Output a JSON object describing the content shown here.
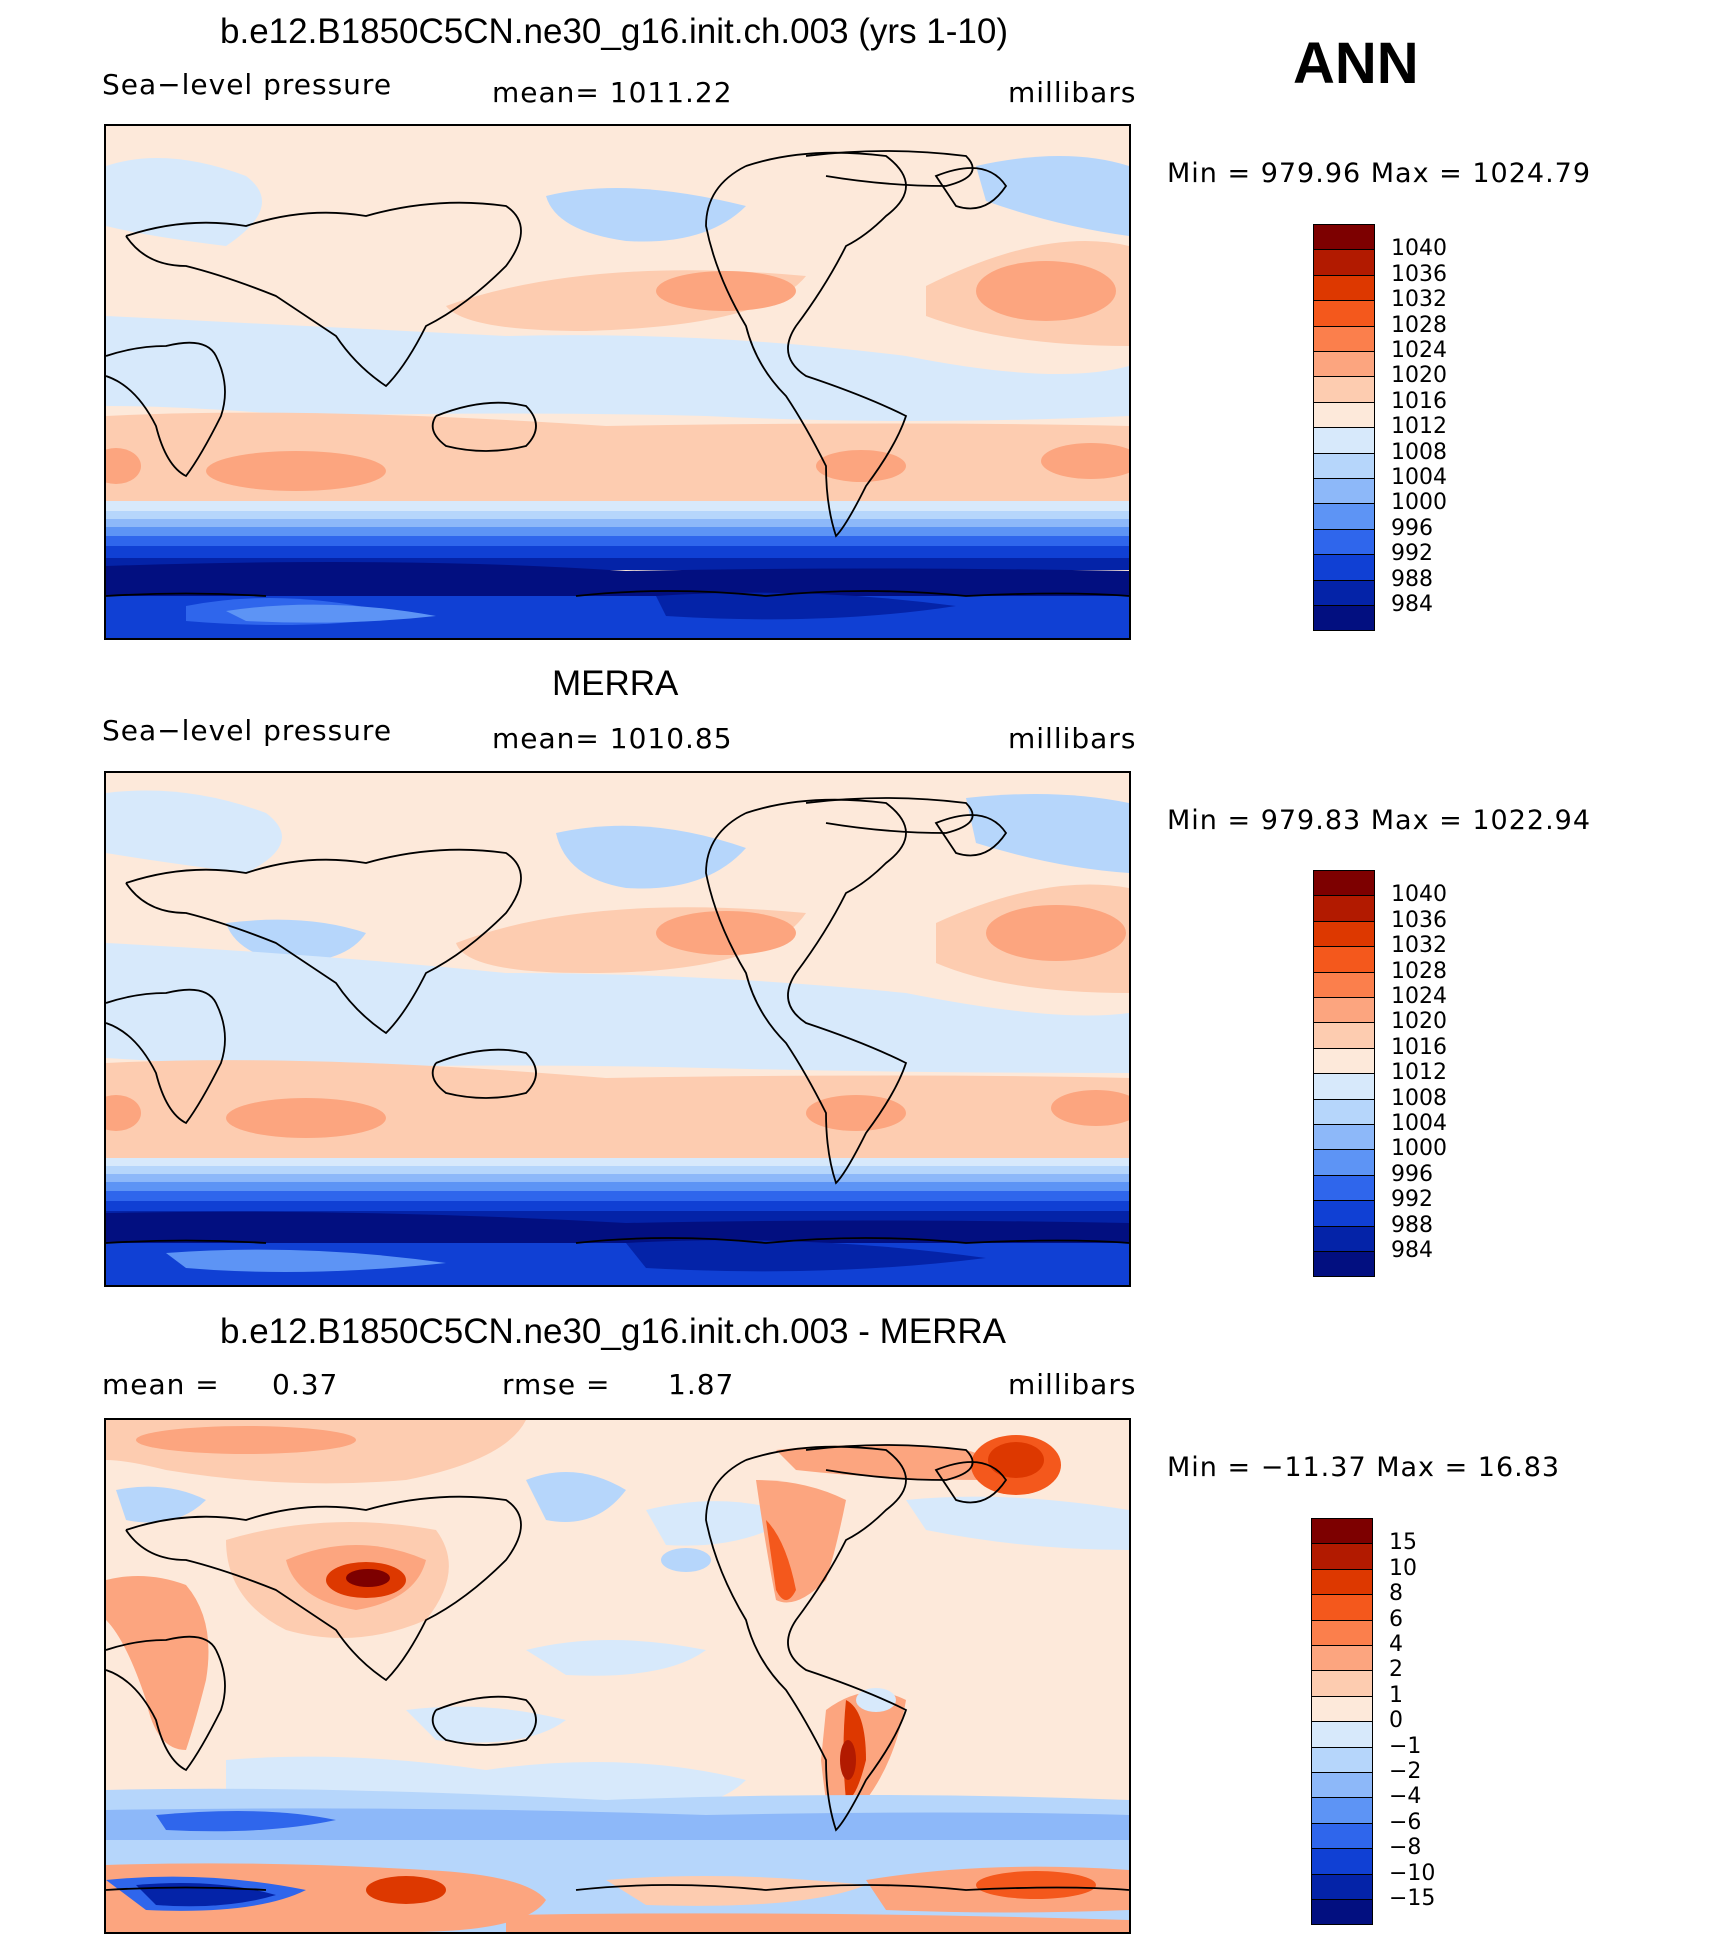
{
  "header": {
    "season": "ANN"
  },
  "panels": [
    {
      "title": "b.e12.B1850C5CN.ne30_g16.init.ch.003 (yrs 1-10)",
      "left_label": "Sea−level pressure",
      "center_label": "mean=  1011.22",
      "units": "millibars",
      "minmax": "Min  =  979.96  Max  =  1024.79",
      "colorbar_key": "abs"
    },
    {
      "title": "MERRA",
      "left_label": "Sea−level pressure",
      "center_label": "mean=  1010.85",
      "units": "millibars",
      "minmax": "Min  =  979.83  Max  =  1022.94",
      "colorbar_key": "abs"
    },
    {
      "title": "b.e12.B1850C5CN.ne30_g16.init.ch.003 - MERRA",
      "left_label": "mean  =",
      "left_value": "0.37",
      "center_label": "rmse  =",
      "center_value": "1.87",
      "units": "millibars",
      "minmax": "Min  =  −11.37  Max  =    16.83",
      "colorbar_key": "diff"
    }
  ],
  "colorbars": {
    "abs": {
      "labels": [
        "1040",
        "1036",
        "1032",
        "1028",
        "1024",
        "1020",
        "1016",
        "1012",
        "1008",
        "1004",
        "1000",
        "996",
        "992",
        "988",
        "984"
      ],
      "colors": [
        "#7d0000",
        "#b21a00",
        "#dd3800",
        "#f4581c",
        "#fb7f4c",
        "#fca57f",
        "#fdccb0",
        "#fde9da",
        "#d7e9fb",
        "#b6d6fb",
        "#8db8f9",
        "#5d94f5",
        "#2f66ec",
        "#1040d4",
        "#0423a8",
        "#020f80"
      ]
    },
    "diff": {
      "labels": [
        "15",
        "10",
        "8",
        "6",
        "4",
        "2",
        "1",
        "0",
        "−1",
        "−2",
        "−4",
        "−6",
        "−8",
        "−10",
        "−15"
      ],
      "colors": [
        "#7d0000",
        "#b21a00",
        "#dd3800",
        "#f4581c",
        "#fb7f4c",
        "#fca57f",
        "#fdccb0",
        "#fde9da",
        "#d7e9fb",
        "#b6d6fb",
        "#8db8f9",
        "#5d94f5",
        "#2f66ec",
        "#1040d4",
        "#0423a8",
        "#020f80"
      ]
    }
  }
}
